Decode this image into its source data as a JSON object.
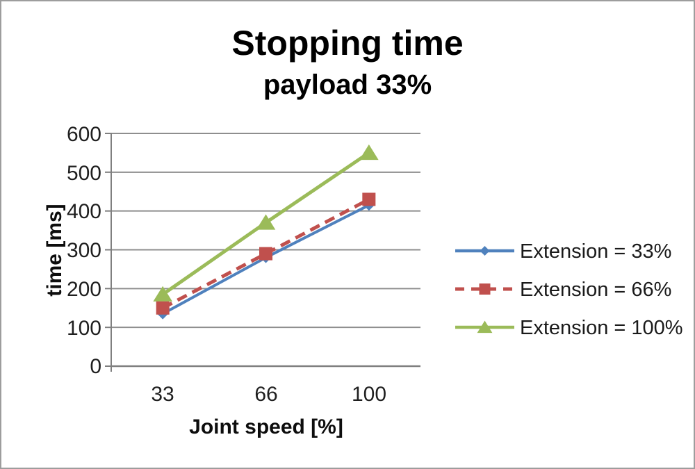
{
  "chart_data": {
    "type": "line",
    "title": "Stopping time",
    "subtitle": "payload 33%",
    "xlabel": "Joint speed [%]",
    "ylabel": "time [ms]",
    "categories": [
      33,
      66,
      100
    ],
    "x_tick_labels": [
      "33",
      "66",
      "100"
    ],
    "y_tick_labels": [
      "600",
      "500",
      "400",
      "300",
      "200",
      "100",
      "0"
    ],
    "ylim": [
      0,
      600
    ],
    "y_step": 100,
    "grid": true,
    "legend_position": "right",
    "series": [
      {
        "name": "Extension = 33%",
        "values": [
          135,
          280,
          415
        ],
        "color": "#4F81BD",
        "marker": "diamond",
        "dash": "solid"
      },
      {
        "name": "Extension = 66%",
        "values": [
          150,
          290,
          430
        ],
        "color": "#C0504D",
        "marker": "square",
        "dash": "dashed"
      },
      {
        "name": "Extension = 100%",
        "values": [
          185,
          370,
          550
        ],
        "color": "#9BBB59",
        "marker": "triangle",
        "dash": "solid"
      }
    ],
    "colors": {
      "gridline": "#8e8e8e",
      "axis": "#7f7f7f",
      "frame_border": "#9d9d9d",
      "background": "#ffffff"
    }
  }
}
